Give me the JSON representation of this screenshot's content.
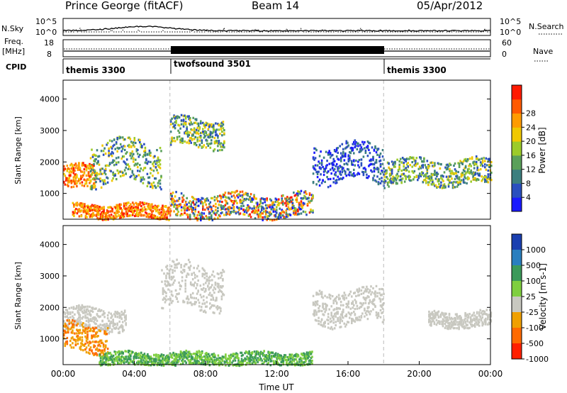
{
  "header": {
    "station": "Prince George (fitACF)",
    "beam": "Beam 14",
    "date": "05/Apr/2012"
  },
  "top_panels": {
    "nsky_label": "N.Sky",
    "nsky_ticks": [
      "10^5",
      "10^0"
    ],
    "nsearch_label": "N.Search",
    "nsearch_ticks": [
      "10^5",
      "10^0"
    ],
    "freq_label": "Freq.",
    "freq_unit": "[MHz]",
    "freq_ticks": [
      "18",
      "8"
    ],
    "nave_label": "Nave",
    "nave_ticks": [
      "60",
      "0"
    ],
    "cpid_label": "CPID",
    "cpid_segments": [
      {
        "name": "themis 3300",
        "start": 0,
        "end": 6
      },
      {
        "name": "twofsound 3501",
        "start": 6,
        "end": 18
      },
      {
        "name": "themis 3300",
        "start": 18,
        "end": 24
      }
    ]
  },
  "chart_data": [
    {
      "type": "heatmap",
      "panel": "power",
      "ylabel": "Slant Range [km]",
      "y_ticks": [
        1000,
        2000,
        3000,
        4000
      ],
      "ylim": [
        180,
        4600
      ],
      "xlim": [
        0,
        24
      ],
      "colorbar": {
        "label": "Power [dB]",
        "ticks": [
          "4",
          "8",
          "12",
          "16",
          "20",
          "24",
          "28"
        ],
        "colors": [
          "#1a1aff",
          "#2a4fbf",
          "#3c7f7f",
          "#5aa05a",
          "#9ccb2a",
          "#f0c800",
          "#ff9b00",
          "#ff5a00",
          "#ff1a00"
        ]
      },
      "echo_regions": [
        {
          "t0": 0.0,
          "t1": 1.8,
          "r0": 1150,
          "r1": 1900,
          "level": "high"
        },
        {
          "t0": 0.5,
          "t1": 6.0,
          "r0": 250,
          "r1": 700,
          "level": "high"
        },
        {
          "t0": 1.5,
          "t1": 5.5,
          "r0": 1350,
          "r1": 2700,
          "level": "med"
        },
        {
          "t0": 6.0,
          "t1": 9.0,
          "r0": 2500,
          "r1": 3400,
          "level": "med"
        },
        {
          "t0": 6.0,
          "t1": 14.0,
          "r0": 250,
          "r1": 1000,
          "level": "mixed"
        },
        {
          "t0": 14.0,
          "t1": 18.0,
          "r0": 1400,
          "r1": 2600,
          "level": "low"
        },
        {
          "t0": 18.0,
          "t1": 24.0,
          "r0": 1300,
          "r1": 2100,
          "level": "med"
        }
      ]
    },
    {
      "type": "heatmap",
      "panel": "velocity",
      "xlabel": "Time UT",
      "ylabel": "Slant Range [km]",
      "y_ticks": [
        1000,
        2000,
        3000,
        4000
      ],
      "ylim": [
        180,
        4600
      ],
      "xlim": [
        0,
        24
      ],
      "x_ticks": [
        "00:00",
        "04:00",
        "08:00",
        "12:00",
        "16:00",
        "20:00",
        "00:00"
      ],
      "colorbar": {
        "label": "Velocity [m s-1]",
        "ticks": [
          "1000",
          "500",
          "100",
          "25",
          "-25",
          "-100",
          "-500",
          "-1000"
        ],
        "colors": [
          "#1a3fb0",
          "#2a7fbf",
          "#3c9a5a",
          "#7fcf3f",
          "#c8c8c0",
          "#f0a000",
          "#ff6a00",
          "#ff2000"
        ]
      },
      "echo_regions": [
        {
          "t0": 0.0,
          "t1": 3.5,
          "r0": 1300,
          "r1": 2000,
          "level": "gray"
        },
        {
          "t0": 0.0,
          "t1": 2.5,
          "r0": 600,
          "r1": 1500,
          "level": "orange"
        },
        {
          "t0": 2.0,
          "t1": 14.0,
          "r0": 180,
          "r1": 600,
          "level": "green"
        },
        {
          "t0": 5.5,
          "t1": 9.0,
          "r0": 2000,
          "r1": 3400,
          "level": "gray"
        },
        {
          "t0": 14.0,
          "t1": 18.0,
          "r0": 1500,
          "r1": 2600,
          "level": "gray"
        },
        {
          "t0": 20.5,
          "t1": 24.0,
          "r0": 1400,
          "r1": 1900,
          "level": "gray"
        }
      ]
    }
  ]
}
